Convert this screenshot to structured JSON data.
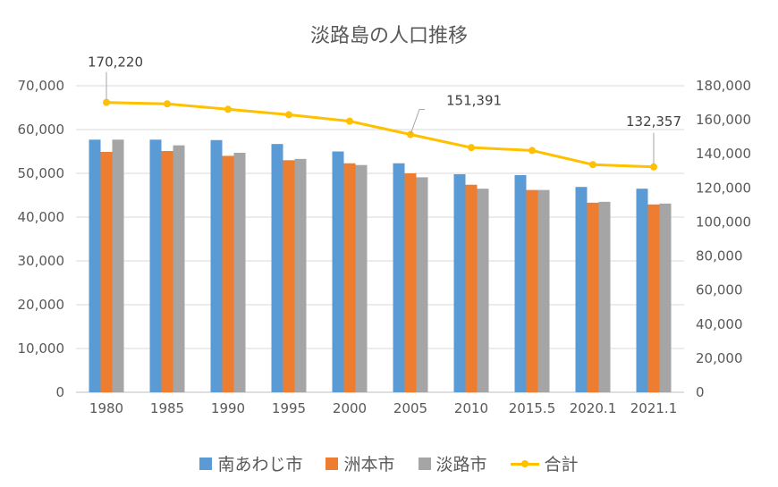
{
  "chart_data": {
    "type": "bar",
    "title": "淡路島の人口推移",
    "categories": [
      "1980",
      "1985",
      "1990",
      "1995",
      "2000",
      "2005",
      "2010",
      "2015.5",
      "2020.1",
      "2021.1"
    ],
    "series": [
      {
        "name": "南あわじ市",
        "type": "bar",
        "axis": "left",
        "color": "#5B9BD5",
        "values": [
          57700,
          57700,
          57600,
          56700,
          55000,
          52300,
          49800,
          49600,
          46900,
          46500
        ]
      },
      {
        "name": "洲本市",
        "type": "bar",
        "axis": "left",
        "color": "#ED7D31",
        "values": [
          54900,
          55100,
          54000,
          53000,
          52300,
          50000,
          47400,
          46200,
          43300,
          42900
        ]
      },
      {
        "name": "淡路市",
        "type": "bar",
        "axis": "left",
        "color": "#A5A5A5",
        "values": [
          57700,
          56400,
          54700,
          53300,
          51900,
          49100,
          46500,
          46200,
          43500,
          43100
        ]
      },
      {
        "name": "合計",
        "type": "line",
        "axis": "right",
        "color": "#FFC000",
        "values": [
          170220,
          169400,
          166200,
          163000,
          159200,
          151391,
          143700,
          142000,
          133700,
          132357
        ]
      }
    ],
    "y_left": {
      "min": 0,
      "max": 70000,
      "ticks": [
        "0",
        "10,000",
        "20,000",
        "30,000",
        "40,000",
        "50,000",
        "60,000",
        "70,000"
      ]
    },
    "y_right": {
      "min": 0,
      "max": 180000,
      "ticks": [
        "0",
        "20,000",
        "40,000",
        "60,000",
        "80,000",
        "100,000",
        "120,000",
        "140,000",
        "160,000",
        "180,000"
      ]
    },
    "annotations": [
      {
        "text": "170,220",
        "category": "1980"
      },
      {
        "text": "151,391",
        "category": "2005"
      },
      {
        "text": "132,357",
        "category": "2021.1"
      }
    ],
    "grid": true,
    "legend_position": "bottom"
  }
}
